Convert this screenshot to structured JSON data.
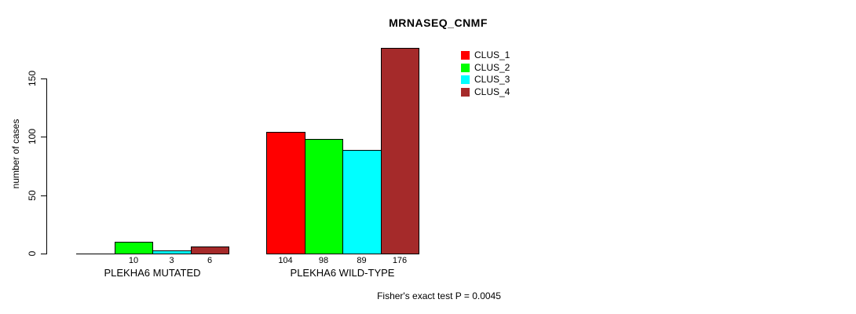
{
  "title": "MRNASEQ_CNMF",
  "footer": "Fisher's exact test P = 0.0045",
  "chart_data": {
    "type": "bar",
    "title": "MRNASEQ_CNMF",
    "xlabel": "",
    "ylabel": "number of cases",
    "yticks": [
      0,
      50,
      100,
      150
    ],
    "ylim": [
      0,
      176
    ],
    "grid": false,
    "legend_position": "top-right",
    "categories": [
      "PLEKHA6 MUTATED",
      "PLEKHA6 WILD-TYPE"
    ],
    "series": [
      {
        "name": "CLUS_1",
        "color": "#FF0000",
        "values": [
          0,
          104
        ]
      },
      {
        "name": "CLUS_2",
        "color": "#00FF00",
        "values": [
          10,
          98
        ]
      },
      {
        "name": "CLUS_3",
        "color": "#00FFFF",
        "values": [
          3,
          89
        ]
      },
      {
        "name": "CLUS_4",
        "color": "#A52A2A",
        "values": [
          6,
          176
        ]
      }
    ],
    "bar_value_labels": [
      [
        "",
        "10",
        "3",
        "6"
      ],
      [
        "104",
        "98",
        "89",
        "176"
      ]
    ],
    "annotation": "Fisher's exact test P = 0.0045",
    "axis_color": "#000000",
    "background_color": "#FFFFFF"
  }
}
